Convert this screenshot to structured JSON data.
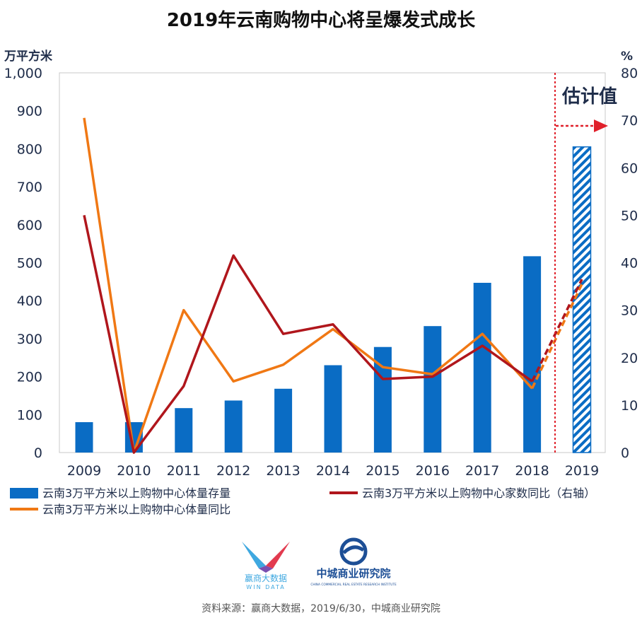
{
  "title": "2019年云南购物中心将呈爆发式成长",
  "chart_data": {
    "type": "bar",
    "categories": [
      "2009",
      "2010",
      "2011",
      "2012",
      "2013",
      "2014",
      "2015",
      "2016",
      "2017",
      "2018",
      "2019"
    ],
    "y_left": {
      "label": "万平方米",
      "min": 0,
      "max": 1000,
      "ticks": [
        "0",
        "100",
        "200",
        "300",
        "400",
        "500",
        "600",
        "700",
        "800",
        "900",
        "1,000"
      ]
    },
    "y_right": {
      "label": "%",
      "min": 0,
      "max": 80,
      "ticks": [
        "0",
        "10",
        "20",
        "30",
        "40",
        "50",
        "60",
        "70",
        "80"
      ]
    },
    "series": [
      {
        "name": "云南3万平方米以上购物中心体量存量",
        "type": "bar",
        "axis": "left",
        "color": "#0a6cc4",
        "values": [
          80,
          80,
          117,
          137,
          168,
          230,
          278,
          333,
          447,
          517,
          805
        ],
        "estimated": [
          false,
          false,
          false,
          false,
          false,
          false,
          false,
          false,
          false,
          false,
          true
        ]
      },
      {
        "name": "云南3万平方米以上购物中心家数同比（右轴）",
        "type": "line",
        "axis": "right",
        "color": "#b0161c",
        "values": [
          50,
          0,
          14,
          41.5,
          25,
          27,
          15.5,
          16,
          22.5,
          15,
          36.5
        ]
      },
      {
        "name": "云南3万平方米以上购物中心体量同比",
        "type": "line",
        "axis": "right",
        "color": "#f07814",
        "values": [
          70.5,
          0,
          30,
          15,
          18.5,
          26,
          18,
          16.5,
          25,
          13.5,
          35.5
        ]
      }
    ],
    "annotation": "估计值",
    "grid": false,
    "legend_position": "bottom"
  },
  "logos": {
    "winData_cn": "赢商大数据",
    "winData_en": "WIN DATA",
    "zhongcheng_cn": "中城商业研究院",
    "zhongcheng_en": "CHINA COMMERCIAL REAL ESTATE RESEARCH INSTITUTE"
  },
  "source": "资料来源：赢商大数据，2019/6/30，中城商业研究院"
}
